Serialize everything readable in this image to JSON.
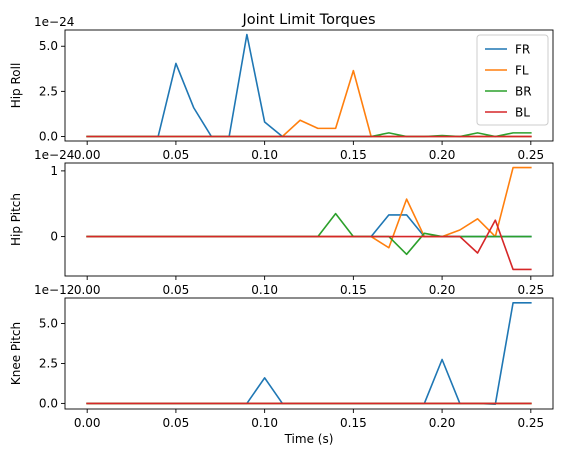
{
  "chart_data": {
    "type": "line",
    "title": "Joint Limit Torques",
    "xlabel": "Time (s)",
    "x_ticks": [
      "0.00",
      "0.05",
      "0.10",
      "0.15",
      "0.20",
      "0.25"
    ],
    "legend": {
      "placement": "top-right",
      "entries": [
        "FR",
        "FL",
        "BR",
        "BL"
      ]
    },
    "series_colors": {
      "FR": "#1f77b4",
      "FL": "#ff7f0e",
      "BR": "#2ca02c",
      "BL": "#d62728"
    },
    "x": [
      0.0,
      0.01,
      0.02,
      0.03,
      0.04,
      0.05,
      0.06,
      0.07,
      0.08,
      0.09,
      0.1,
      0.11,
      0.12,
      0.13,
      0.14,
      0.15,
      0.16,
      0.17,
      0.18,
      0.19,
      0.2,
      0.21,
      0.22,
      0.23,
      0.24,
      0.25
    ],
    "subplots": [
      {
        "ylabel": "Hip Roll",
        "offset_text": "1e−24",
        "ylim": [
          -0.25,
          5.9
        ],
        "y_ticks": [
          0.0,
          2.5,
          5.0
        ],
        "y_tick_labels": [
          "0.0",
          "2.5",
          "5.0"
        ],
        "series": [
          {
            "name": "FR",
            "values": [
              0,
              0,
              0,
              0,
              0,
              4.05,
              1.6,
              0,
              0,
              5.65,
              0.8,
              0,
              0,
              0,
              0,
              0,
              0,
              0,
              0,
              0,
              0,
              0,
              0,
              0,
              0,
              0
            ]
          },
          {
            "name": "FL",
            "values": [
              0,
              0,
              0,
              0,
              0,
              0,
              0,
              0,
              0,
              0,
              0,
              0,
              0.9,
              0.45,
              0.45,
              3.65,
              0,
              0,
              0,
              0,
              0,
              0,
              0,
              0,
              0,
              0
            ]
          },
          {
            "name": "BR",
            "values": [
              0,
              0,
              0,
              0,
              0,
              0,
              0,
              0,
              0,
              0,
              0,
              0,
              0,
              0,
              0,
              0,
              0,
              0.2,
              0,
              0,
              0.05,
              0,
              0.2,
              0,
              0.2,
              0.2
            ]
          },
          {
            "name": "BL",
            "values": [
              0,
              0,
              0,
              0,
              0,
              0,
              0,
              0,
              0,
              0,
              0,
              0,
              0,
              0,
              0,
              0,
              0,
              0,
              0,
              0,
              0,
              0,
              0,
              0,
              0,
              0
            ]
          }
        ]
      },
      {
        "ylabel": "Hip Pitch",
        "offset_text": "1e−24",
        "ylim": [
          -0.6,
          1.12
        ],
        "y_ticks": [
          0,
          1
        ],
        "y_tick_labels": [
          "0",
          "1"
        ],
        "series": [
          {
            "name": "FR",
            "values": [
              0,
              0,
              0,
              0,
              0,
              0,
              0,
              0,
              0,
              0,
              0,
              0,
              0,
              0,
              0,
              0,
              0,
              0.33,
              0.33,
              0,
              0,
              0,
              0,
              0,
              0,
              0
            ]
          },
          {
            "name": "FL",
            "values": [
              0,
              0,
              0,
              0,
              0,
              0,
              0,
              0,
              0,
              0,
              0,
              0,
              0,
              0,
              0,
              0,
              0,
              -0.17,
              0.57,
              0,
              0,
              0.1,
              0.27,
              0,
              1.05,
              1.05
            ]
          },
          {
            "name": "BR",
            "values": [
              0,
              0,
              0,
              0,
              0,
              0,
              0,
              0,
              0,
              0,
              0,
              0,
              0,
              0,
              0.35,
              0,
              0,
              0,
              -0.27,
              0.05,
              0,
              0,
              0,
              0,
              0,
              0
            ]
          },
          {
            "name": "BL",
            "values": [
              0,
              0,
              0,
              0,
              0,
              0,
              0,
              0,
              0,
              0,
              0,
              0,
              0,
              0,
              0,
              0,
              0,
              0,
              0,
              0,
              0,
              0,
              -0.25,
              0.25,
              -0.5,
              -0.5
            ]
          }
        ]
      },
      {
        "ylabel": "Knee Pitch",
        "offset_text": "1e−12",
        "ylim": [
          -0.35,
          6.6
        ],
        "y_ticks": [
          0.0,
          2.5,
          5.0
        ],
        "y_tick_labels": [
          "0.0",
          "2.5",
          "5.0"
        ],
        "series": [
          {
            "name": "FR",
            "values": [
              0,
              0,
              0,
              0,
              0,
              0,
              0,
              0,
              0,
              0,
              1.6,
              0,
              0,
              0,
              0,
              0,
              0,
              0,
              0,
              0,
              2.75,
              0,
              0,
              -0.05,
              6.3,
              6.3
            ]
          },
          {
            "name": "FL",
            "values": [
              0,
              0,
              0,
              0,
              0,
              0,
              0,
              0,
              0,
              0,
              0,
              0,
              0,
              0,
              0,
              0,
              0,
              0,
              0,
              0,
              0,
              0,
              0,
              0,
              0,
              0
            ]
          },
          {
            "name": "BR",
            "values": [
              0,
              0,
              0,
              0,
              0,
              0,
              0,
              0,
              0,
              0,
              0,
              0,
              0,
              0,
              0,
              0,
              0,
              0,
              0,
              0,
              0,
              0,
              0,
              0,
              0,
              0
            ]
          },
          {
            "name": "BL",
            "values": [
              0,
              0,
              0,
              0,
              0,
              0,
              0,
              0,
              0,
              0,
              0,
              0,
              0,
              0,
              0,
              0,
              0,
              0,
              0,
              0,
              0,
              0,
              0,
              0,
              0,
              0
            ]
          }
        ]
      }
    ]
  }
}
